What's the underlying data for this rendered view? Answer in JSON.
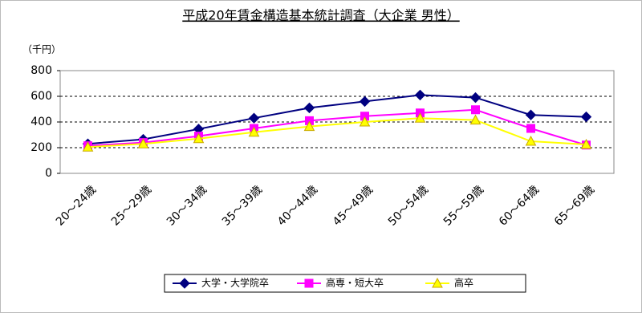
{
  "chart_data": {
    "type": "line",
    "title": "平成20年賃金構造基本統計調査（大企業 男性）",
    "y_label": "（千円）",
    "categories": [
      "20～24歳",
      "25～29歳",
      "30～34歳",
      "35～39歳",
      "40～44歳",
      "45～49歳",
      "50～54歳",
      "55～59歳",
      "60～64歳",
      "65～69歳"
    ],
    "series": [
      {
        "name": "大学・大学院卒",
        "color": "#000080",
        "marker": "diamond",
        "values": [
          230,
          265,
          345,
          430,
          510,
          560,
          610,
          590,
          455,
          440
        ]
      },
      {
        "name": "高専・短大卒",
        "color": "#ff00ff",
        "marker": "square",
        "values": [
          215,
          240,
          290,
          350,
          410,
          445,
          470,
          495,
          350,
          220
        ]
      },
      {
        "name": "高卒",
        "color": "#ffff00",
        "marker": "triangle",
        "values": [
          205,
          230,
          270,
          320,
          365,
          400,
          430,
          415,
          250,
          225
        ]
      }
    ],
    "ylim": [
      0,
      800
    ],
    "yticks": [
      0,
      200,
      400,
      600,
      800
    ],
    "grid": true
  }
}
